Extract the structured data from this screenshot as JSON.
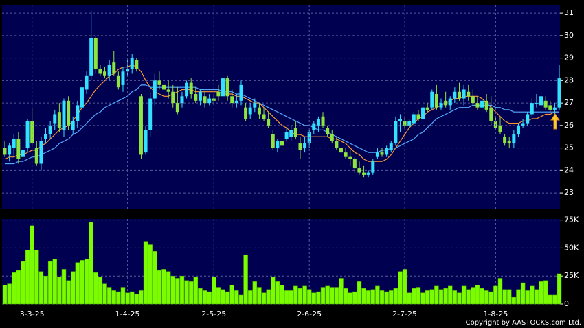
{
  "chart_data": [
    {
      "type": "candlestick",
      "open": [
        25.0,
        24.7,
        25.0,
        25.4,
        24.6,
        25.0,
        26.2,
        25.0,
        24.3,
        25.4,
        25.6,
        26.1,
        26.6,
        25.8,
        27.1,
        25.8,
        26.2,
        26.8,
        27.6,
        28.2,
        29.9,
        28.5,
        28.4,
        28.2,
        28.8,
        28.2,
        27.8,
        28.4,
        28.5,
        28.9,
        27.3,
        24.8,
        25.8,
        27.2,
        28.0,
        27.8,
        27.6,
        27.5,
        27.0,
        27.0,
        27.3,
        27.9,
        27.4,
        27.1,
        27.3,
        27.0,
        27.2,
        27.5,
        27.3,
        28.1,
        27.3,
        27.0,
        27.1,
        26.8,
        26.5,
        26.8,
        26.8,
        26.5,
        26.3,
        25.6,
        25.0,
        25.3,
        25.4,
        25.5,
        25.9,
        25.2,
        25.0,
        25.2,
        25.8,
        26.0,
        26.4,
        25.9,
        25.6,
        25.3,
        25.0,
        24.8,
        24.6,
        24.5,
        24.1,
        23.9,
        23.8,
        23.9,
        24.6,
        24.8,
        24.7,
        24.9,
        25.2,
        26.2,
        26.2,
        26.0,
        26.1,
        26.5,
        26.3,
        26.8,
        26.8,
        27.4,
        26.8,
        27.1,
        26.9,
        27.2,
        27.5,
        27.2,
        27.5,
        27.3,
        27.0,
        26.8,
        27.1,
        26.8,
        26.2,
        26.0,
        25.5,
        25.3,
        25.2,
        25.6,
        26.0,
        26.1,
        26.5,
        27.0,
        26.9,
        27.1,
        26.9,
        26.7,
        26.8
      ],
      "high": [
        25.3,
        25.2,
        25.6,
        25.7,
        25.1,
        26.3,
        26.8,
        25.3,
        25.5,
        25.9,
        26.2,
        26.7,
        27.0,
        27.2,
        27.3,
        26.4,
        27.1,
        27.8,
        28.4,
        31.1,
        30.0,
        28.7,
        28.6,
        28.9,
        29.3,
        28.4,
        28.6,
        28.9,
        29.2,
        29.0,
        27.4,
        26.0,
        27.5,
        28.3,
        28.4,
        28.2,
        28.0,
        27.8,
        27.7,
        27.5,
        28.0,
        28.1,
        27.7,
        27.6,
        27.5,
        27.4,
        27.4,
        27.8,
        28.2,
        28.2,
        27.6,
        27.4,
        28.0,
        27.0,
        27.0,
        27.2,
        27.0,
        26.8,
        26.6,
        25.8,
        25.4,
        25.5,
        25.9,
        26.0,
        26.2,
        25.5,
        25.5,
        25.8,
        26.2,
        26.4,
        26.6,
        26.0,
        25.8,
        25.5,
        25.3,
        25.0,
        24.9,
        24.6,
        24.4,
        24.2,
        24.0,
        24.5,
        25.0,
        25.0,
        25.1,
        25.3,
        26.4,
        26.5,
        26.4,
        26.3,
        26.6,
        26.7,
        26.9,
        27.0,
        27.6,
        27.8,
        27.2,
        27.5,
        27.3,
        27.7,
        27.9,
        27.8,
        27.8,
        27.6,
        27.3,
        27.2,
        27.4,
        27.3,
        26.4,
        26.4,
        25.6,
        25.5,
        25.8,
        26.1,
        26.3,
        26.6,
        27.2,
        27.4,
        27.5,
        27.3,
        27.1,
        27.0,
        28.7
      ],
      "low": [
        24.6,
        24.4,
        24.6,
        24.3,
        24.3,
        24.8,
        25.1,
        24.2,
        24.0,
        25.2,
        25.4,
        25.8,
        25.7,
        25.5,
        25.8,
        25.6,
        25.9,
        26.6,
        27.4,
        28.0,
        28.3,
        28.2,
        28.1,
        28.0,
        28.2,
        27.6,
        27.5,
        28.2,
        28.3,
        28.4,
        24.5,
        24.7,
        25.5,
        26.9,
        27.6,
        27.3,
        27.2,
        26.8,
        26.5,
        26.8,
        27.2,
        27.2,
        27.0,
        26.9,
        26.8,
        26.9,
        26.9,
        27.1,
        27.1,
        27.1,
        26.8,
        26.8,
        26.9,
        26.2,
        26.3,
        26.6,
        26.3,
        26.2,
        25.9,
        24.9,
        24.8,
        24.9,
        25.3,
        25.3,
        25.4,
        24.5,
        24.8,
        25.0,
        25.6,
        25.7,
        25.9,
        25.5,
        25.2,
        24.9,
        24.6,
        24.5,
        24.2,
        23.9,
        23.8,
        23.7,
        23.7,
        23.8,
        24.5,
        24.6,
        24.6,
        24.8,
        25.1,
        25.7,
        25.9,
        25.9,
        26.0,
        26.2,
        26.2,
        26.6,
        26.7,
        26.7,
        26.7,
        26.8,
        26.7,
        27.0,
        27.1,
        26.9,
        27.1,
        26.9,
        26.7,
        26.6,
        26.6,
        26.0,
        25.8,
        25.6,
        25.1,
        25.0,
        25.0,
        25.5,
        25.9,
        26.0,
        26.4,
        26.8,
        26.8,
        26.7,
        26.6,
        26.5,
        26.7
      ],
      "close": [
        24.7,
        25.1,
        25.4,
        24.5,
        24.9,
        26.2,
        25.2,
        24.3,
        25.3,
        25.6,
        26.0,
        26.5,
        25.9,
        27.1,
        26.0,
        26.2,
        26.9,
        27.7,
        28.2,
        29.9,
        28.5,
        28.3,
        28.2,
        28.7,
        28.3,
        27.7,
        28.4,
        28.5,
        29.0,
        28.5,
        24.7,
        25.8,
        27.2,
        28.0,
        27.8,
        27.6,
        27.5,
        27.0,
        26.6,
        27.3,
        27.9,
        27.4,
        27.1,
        27.5,
        27.0,
        27.2,
        27.1,
        27.3,
        28.1,
        27.3,
        27.0,
        27.1,
        27.8,
        26.3,
        26.8,
        27.0,
        26.5,
        26.3,
        26.0,
        25.0,
        25.3,
        25.1,
        25.7,
        25.8,
        25.5,
        24.9,
        25.2,
        25.7,
        26.1,
        26.3,
        26.0,
        25.6,
        25.3,
        25.0,
        24.8,
        24.6,
        24.5,
        24.1,
        23.9,
        23.8,
        23.9,
        24.4,
        24.8,
        24.7,
        25.0,
        25.2,
        26.2,
        26.3,
        26.0,
        26.2,
        26.5,
        26.3,
        26.8,
        26.7,
        27.5,
        26.8,
        27.0,
        26.9,
        27.2,
        27.5,
        27.2,
        27.6,
        27.3,
        27.0,
        26.8,
        27.1,
        26.7,
        26.2,
        25.9,
        25.7,
        25.2,
        25.2,
        25.6,
        26.0,
        26.1,
        26.5,
        27.0,
        27.0,
        27.3,
        26.8,
        26.7,
        26.8,
        28.1
      ],
      "series": [
        {
          "color": "#ff9933",
          "values": [
            24.5,
            24.6,
            24.6,
            24.7,
            24.7,
            24.8,
            24.9,
            24.9,
            25.1,
            25.2,
            25.4,
            25.6,
            25.8,
            25.9,
            26.0,
            26.2,
            26.5,
            26.8,
            27.0,
            27.3,
            27.6,
            27.8,
            28.0,
            28.2,
            28.3,
            28.5,
            28.6,
            28.6,
            28.7,
            28.6,
            28.4,
            28.0,
            27.7,
            27.5,
            27.4,
            27.3,
            27.3,
            27.4,
            27.5,
            27.6,
            27.6,
            27.6,
            27.5,
            27.5,
            27.5,
            27.5,
            27.5,
            27.5,
            27.4,
            27.4,
            27.4,
            27.3,
            27.3,
            27.2,
            27.1,
            27.0,
            27.0,
            26.8,
            26.6,
            26.4,
            26.2,
            26.0,
            25.9,
            25.7,
            25.6,
            25.6,
            25.5,
            25.5,
            25.5,
            25.5,
            25.5,
            25.5,
            25.4,
            25.4,
            25.3,
            25.2,
            25.0,
            24.8,
            24.7,
            24.5,
            24.4,
            24.4,
            24.4,
            24.4,
            24.5,
            24.7,
            25.0,
            25.3,
            25.6,
            25.9,
            26.1,
            26.3,
            26.4,
            26.6,
            26.7,
            26.8,
            26.9,
            27.0,
            27.1,
            27.2,
            27.2,
            27.3,
            27.3,
            27.3,
            27.3,
            27.2,
            27.0,
            26.8,
            26.6,
            26.4,
            26.2,
            26.1,
            26.1,
            26.1,
            26.2,
            26.2,
            26.3,
            26.3,
            26.4,
            26.5,
            26.5,
            26.6,
            26.6
          ]
        },
        {
          "color": "#55aaff",
          "values": [
            24.3,
            24.3,
            24.3,
            24.4,
            24.4,
            24.5,
            24.6,
            24.6,
            24.7,
            24.8,
            24.9,
            25.0,
            25.2,
            25.3,
            25.4,
            25.6,
            25.7,
            25.9,
            26.1,
            26.3,
            26.5,
            26.6,
            26.8,
            26.9,
            27.0,
            27.1,
            27.2,
            27.3,
            27.5,
            27.6,
            27.8,
            27.8,
            27.7,
            27.7,
            27.7,
            27.7,
            27.7,
            27.7,
            27.7,
            27.7,
            27.7,
            27.7,
            27.7,
            27.6,
            27.6,
            27.6,
            27.6,
            27.6,
            27.5,
            27.5,
            27.5,
            27.4,
            27.4,
            27.3,
            27.2,
            27.1,
            27.0,
            26.9,
            26.8,
            26.7,
            26.6,
            26.5,
            26.4,
            26.3,
            26.2,
            26.1,
            26.0,
            26.0,
            25.9,
            25.8,
            25.8,
            25.7,
            25.6,
            25.5,
            25.4,
            25.3,
            25.2,
            25.1,
            25.0,
            24.9,
            24.8,
            24.8,
            24.8,
            24.9,
            24.9,
            25.0,
            25.0,
            25.1,
            25.2,
            25.3,
            25.4,
            25.6,
            25.7,
            25.9,
            26.1,
            26.3,
            26.4,
            26.5,
            26.6,
            26.7,
            26.8,
            26.8,
            26.8,
            26.9,
            26.9,
            26.9,
            26.9,
            26.9,
            26.8,
            26.8,
            26.7,
            26.7,
            26.6,
            26.6,
            26.6,
            26.6,
            26.6,
            26.6,
            26.6,
            26.6,
            26.6,
            26.6,
            26.6
          ]
        }
      ],
      "up_color": "#33e0ff",
      "down_color": "#8ee53f",
      "ylim": [
        22.27,
        31.37
      ],
      "yticks": [
        23,
        24,
        25,
        26,
        27,
        28,
        29,
        30,
        31
      ],
      "grid": true
    },
    {
      "type": "bar",
      "categories": [
        null,
        null,
        null,
        null,
        null,
        null,
        "3-3-25",
        null,
        null,
        null,
        null,
        null,
        null,
        null,
        null,
        null,
        null,
        null,
        null,
        null,
        null,
        null,
        null,
        null,
        null,
        null,
        null,
        "1-4-25",
        null,
        null,
        null,
        null,
        null,
        null,
        null,
        null,
        null,
        null,
        null,
        null,
        null,
        null,
        null,
        null,
        null,
        null,
        "2-5-25",
        null,
        null,
        null,
        null,
        null,
        null,
        null,
        null,
        null,
        null,
        null,
        null,
        null,
        null,
        null,
        null,
        null,
        null,
        null,
        null,
        "2-6-25",
        null,
        null,
        null,
        null,
        null,
        null,
        null,
        null,
        null,
        null,
        null,
        null,
        null,
        null,
        null,
        null,
        null,
        null,
        null,
        null,
        "2-7-25",
        null,
        null,
        null,
        null,
        null,
        null,
        null,
        null,
        null,
        null,
        null,
        null,
        null,
        null,
        null,
        null,
        null,
        null,
        null,
        "1-8-25",
        null,
        null,
        null,
        null,
        null,
        null,
        null,
        null,
        null,
        null,
        null,
        null,
        null,
        null
      ],
      "values": [
        17000,
        18000,
        28000,
        30000,
        38000,
        48000,
        70000,
        48000,
        29000,
        25000,
        38000,
        40000,
        24000,
        31000,
        21000,
        29000,
        37000,
        39000,
        40000,
        73000,
        28000,
        24000,
        18000,
        15000,
        12000,
        11000,
        15000,
        10000,
        11000,
        9000,
        12000,
        56000,
        53000,
        47000,
        30000,
        31000,
        29000,
        25000,
        23000,
        25000,
        21000,
        20000,
        24000,
        14000,
        12000,
        11000,
        24000,
        15000,
        13000,
        11000,
        17000,
        12000,
        8000,
        44000,
        12000,
        20000,
        15000,
        10000,
        13000,
        24000,
        20000,
        17000,
        12000,
        12000,
        16000,
        14000,
        16000,
        13000,
        10000,
        11000,
        15000,
        16000,
        15000,
        15000,
        23000,
        14000,
        10000,
        11000,
        20000,
        14000,
        12000,
        13000,
        16000,
        12000,
        11000,
        12000,
        14000,
        29000,
        31000,
        10000,
        14000,
        15000,
        10000,
        12000,
        13000,
        16000,
        13000,
        14000,
        16000,
        12000,
        10000,
        16000,
        13000,
        15000,
        17000,
        14000,
        12000,
        11000,
        16000,
        23000,
        13000,
        13000,
        6000,
        13000,
        19000,
        12000,
        16000,
        13000,
        20000,
        21000,
        8000,
        8000,
        27000
      ],
      "color": "#7cfc00",
      "ylim": [
        0,
        76000
      ],
      "yticks": [
        0,
        {
          "value": 25000,
          "label": "25K"
        },
        {
          "value": 50000,
          "label": "50K"
        },
        {
          "value": 75000,
          "label": "75K"
        }
      ],
      "grid": true
    }
  ],
  "copyright": "Copyright by AASTOCKS.com Ltd."
}
